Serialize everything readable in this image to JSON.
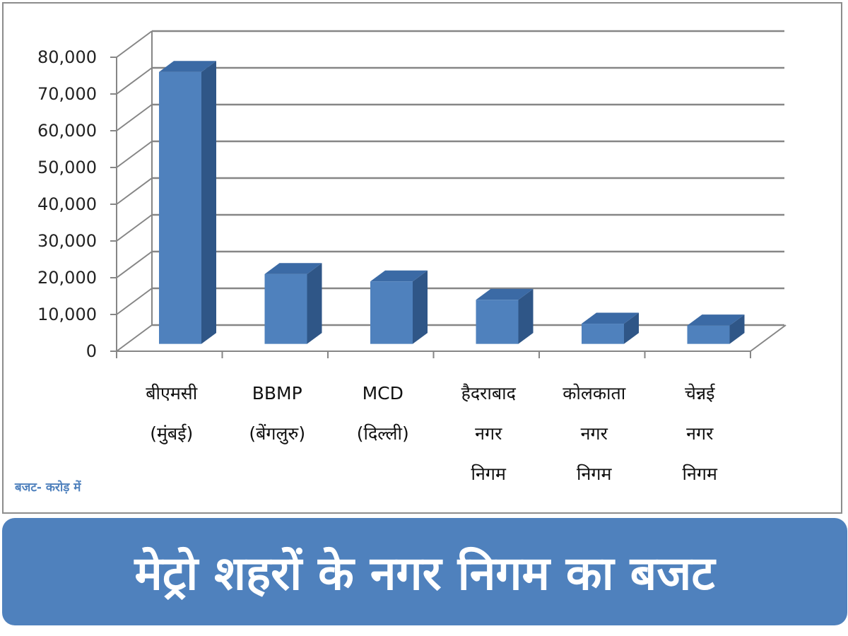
{
  "title": "मेट्रो शहरों के नगर निगम का बजट",
  "unit_note": "बजट- करोड़ में",
  "colors": {
    "bar_front": "#4f81bd",
    "bar_side": "#2f5687",
    "bar_top": "#3b6aa5",
    "banner": "#4f81bd",
    "grid": "#868686"
  },
  "chart_data": {
    "type": "bar",
    "style": "3d-column",
    "categories": [
      [
        "बीएमसी",
        "(मुंबई)"
      ],
      [
        "BBMP",
        "(बेंगलुरु)"
      ],
      [
        "MCD",
        "(दिल्ली)"
      ],
      [
        "हैदराबाद",
        "नगर",
        "निगम"
      ],
      [
        "कोलकाता",
        "नगर",
        "निगम"
      ],
      [
        "चेन्नई",
        "नगर",
        "निगम"
      ]
    ],
    "values": [
      74000,
      19000,
      17000,
      12000,
      5500,
      5000
    ],
    "ylim": [
      0,
      80000
    ],
    "yticks": [
      "0",
      "10,000",
      "20,000",
      "30,000",
      "40,000",
      "50,000",
      "60,000",
      "70,000",
      "80,000"
    ],
    "grid": true,
    "legend": "none"
  }
}
